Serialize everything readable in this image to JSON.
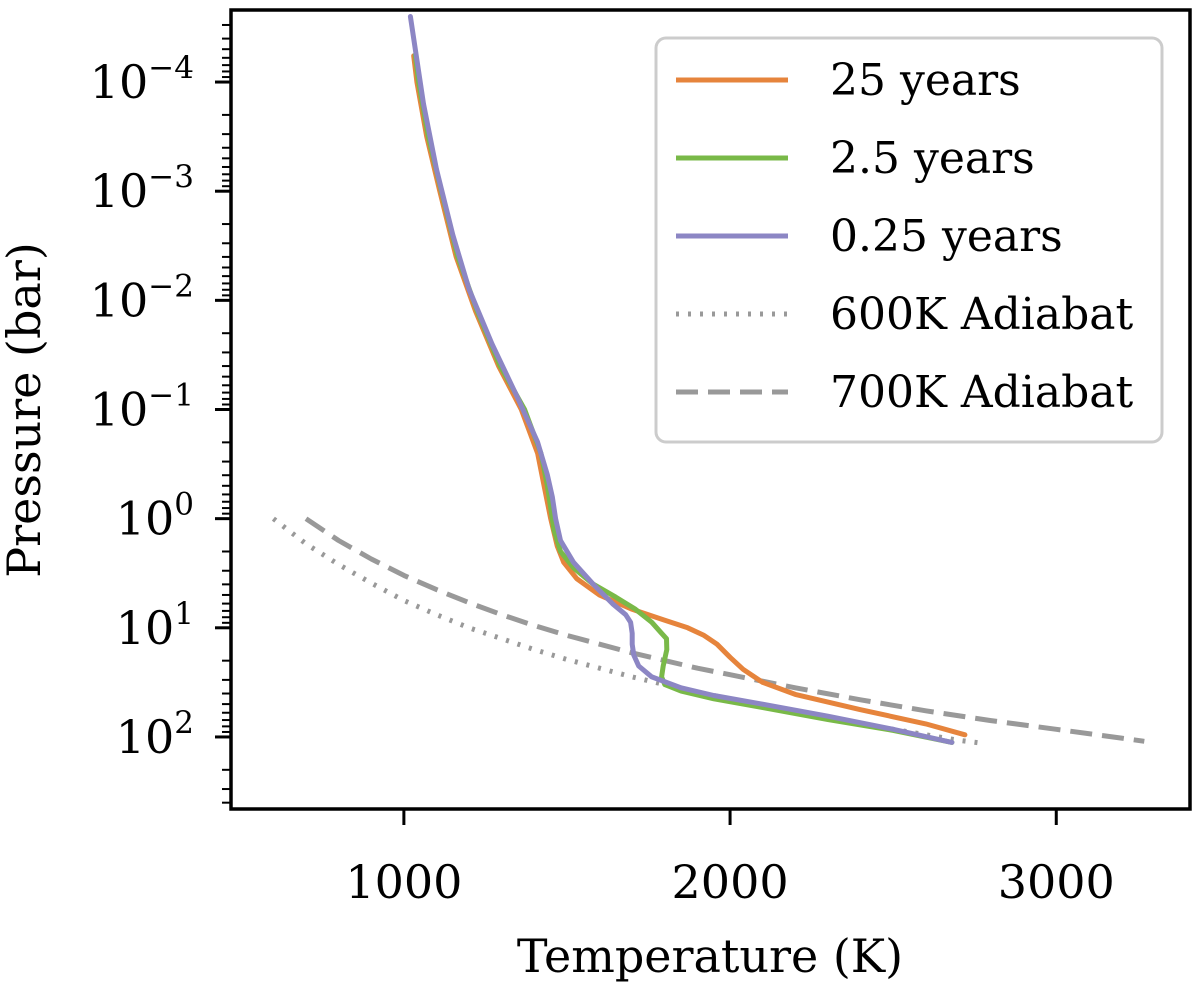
{
  "chart_data": {
    "type": "line",
    "xlabel": "Temperature (K)",
    "ylabel": "Pressure (bar)",
    "xlim": [
      470,
      3410
    ],
    "x_ticks": [
      1000,
      2000,
      3000
    ],
    "x_tick_labels": [
      "1000",
      "2000",
      "3000"
    ],
    "y_scale": "log",
    "y_inverted": true,
    "ylim_log10": [
      -4.66,
      2.66
    ],
    "y_ticks_log10": [
      -4,
      -3,
      -2,
      -1,
      0,
      1,
      2
    ],
    "y_tick_labels": [
      {
        "base": "10",
        "exp": "−4"
      },
      {
        "base": "10",
        "exp": "−3"
      },
      {
        "base": "10",
        "exp": "−2"
      },
      {
        "base": "10",
        "exp": "−1"
      },
      {
        "base": "10",
        "exp": "0"
      },
      {
        "base": "10",
        "exp": "1"
      },
      {
        "base": "10",
        "exp": "2"
      }
    ],
    "grid": false,
    "legend_position": "top-right",
    "series": [
      {
        "name": "25 years",
        "color": "#e6843c",
        "style": "solid",
        "x": [
          1030,
          1040,
          1070,
          1110,
          1160,
          1220,
          1290,
          1360,
          1410,
          1430,
          1450,
          1470,
          1490,
          1530,
          1600,
          1700,
          1800,
          1870,
          1920,
          1960,
          2000,
          2040,
          2100,
          2200,
          2400,
          2600,
          2720
        ],
        "y": [
          -4.24,
          -4.0,
          -3.5,
          -3.0,
          -2.4,
          -1.9,
          -1.4,
          -1.0,
          -0.6,
          -0.3,
          0.0,
          0.25,
          0.4,
          0.55,
          0.7,
          0.83,
          0.93,
          1.0,
          1.07,
          1.15,
          1.27,
          1.38,
          1.5,
          1.61,
          1.75,
          1.88,
          1.98
        ]
      },
      {
        "name": "2.5 years",
        "color": "#79b948",
        "style": "solid",
        "x": [
          1035,
          1045,
          1075,
          1115,
          1165,
          1225,
          1295,
          1370,
          1420,
          1440,
          1450,
          1460,
          1480,
          1520,
          1580,
          1650,
          1710,
          1760,
          1790,
          1805,
          1806,
          1795,
          1790,
          1800,
          1850,
          1950,
          2100,
          2300,
          2500,
          2680
        ],
        "y": [
          -4.25,
          -4.0,
          -3.5,
          -3.0,
          -2.4,
          -1.9,
          -1.4,
          -1.0,
          -0.6,
          -0.3,
          -0.1,
          0.1,
          0.3,
          0.45,
          0.6,
          0.72,
          0.83,
          0.95,
          1.05,
          1.1,
          1.2,
          1.35,
          1.45,
          1.52,
          1.58,
          1.65,
          1.73,
          1.84,
          1.94,
          2.05
        ]
      },
      {
        "name": "0.25 years",
        "color": "#8c86c4",
        "style": "solid",
        "x": [
          1020,
          1035,
          1060,
          1100,
          1150,
          1200,
          1270,
          1350,
          1410,
          1440,
          1455,
          1465,
          1480,
          1520,
          1580,
          1640,
          1680,
          1695,
          1700,
          1700,
          1705,
          1720,
          1760,
          1850,
          1950,
          2100,
          2300,
          2500,
          2680
        ],
        "y": [
          -4.6,
          -4.3,
          -3.8,
          -3.2,
          -2.6,
          -2.1,
          -1.6,
          -1.1,
          -0.7,
          -0.4,
          -0.2,
          0.0,
          0.2,
          0.4,
          0.6,
          0.78,
          0.88,
          0.95,
          1.05,
          1.15,
          1.25,
          1.35,
          1.45,
          1.55,
          1.62,
          1.7,
          1.81,
          1.93,
          2.05
        ]
      },
      {
        "name": "600K Adiabat",
        "color": "#999999",
        "style": "dotted",
        "x": [
          600,
          700,
          800,
          900,
          1000,
          1100,
          1200,
          1300,
          1400,
          1500,
          1600,
          1700,
          1800,
          1900,
          2000,
          2100,
          2200,
          2300,
          2400,
          2500,
          2600,
          2700,
          2780
        ],
        "y": [
          0.0,
          0.23,
          0.42,
          0.59,
          0.75,
          0.88,
          1.0,
          1.1,
          1.2,
          1.29,
          1.37,
          1.45,
          1.52,
          1.59,
          1.65,
          1.71,
          1.77,
          1.83,
          1.88,
          1.93,
          1.98,
          2.03,
          2.06
        ]
      },
      {
        "name": "700K Adiabat",
        "color": "#999999",
        "style": "dashed",
        "x": [
          700,
          800,
          900,
          1000,
          1100,
          1200,
          1300,
          1400,
          1500,
          1600,
          1700,
          1800,
          1900,
          2000,
          2200,
          2400,
          2600,
          2800,
          3000,
          3200,
          3270
        ],
        "y": [
          0.0,
          0.2,
          0.37,
          0.52,
          0.65,
          0.77,
          0.88,
          0.98,
          1.07,
          1.15,
          1.23,
          1.3,
          1.37,
          1.43,
          1.55,
          1.66,
          1.76,
          1.85,
          1.93,
          2.01,
          2.04
        ]
      }
    ]
  }
}
